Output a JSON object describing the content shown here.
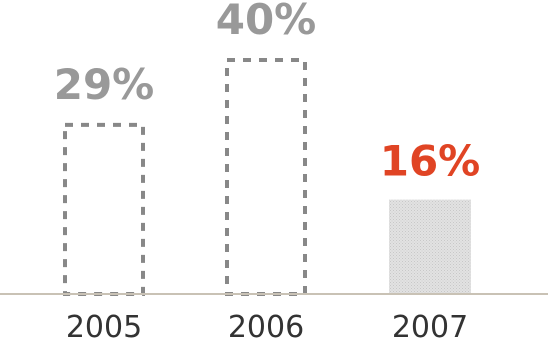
{
  "chart_data": {
    "type": "bar",
    "categories": [
      "2005",
      "2006",
      "2007"
    ],
    "values": [
      29,
      40,
      16
    ],
    "value_labels": [
      "29%",
      "40%",
      "16%"
    ],
    "ylim": [
      0,
      40
    ],
    "grid": false,
    "legend": "none",
    "bar_styles": [
      "dashed-outline",
      "dashed-outline",
      "filled-pattern"
    ],
    "colors": {
      "outline": "#888888",
      "label_default": "#999999",
      "label_highlight": "#e04424",
      "fill_highlight": "#d6d6d6",
      "axis": "#c9c2b5",
      "tick_text": "#333333"
    },
    "highlight_index": 2
  }
}
